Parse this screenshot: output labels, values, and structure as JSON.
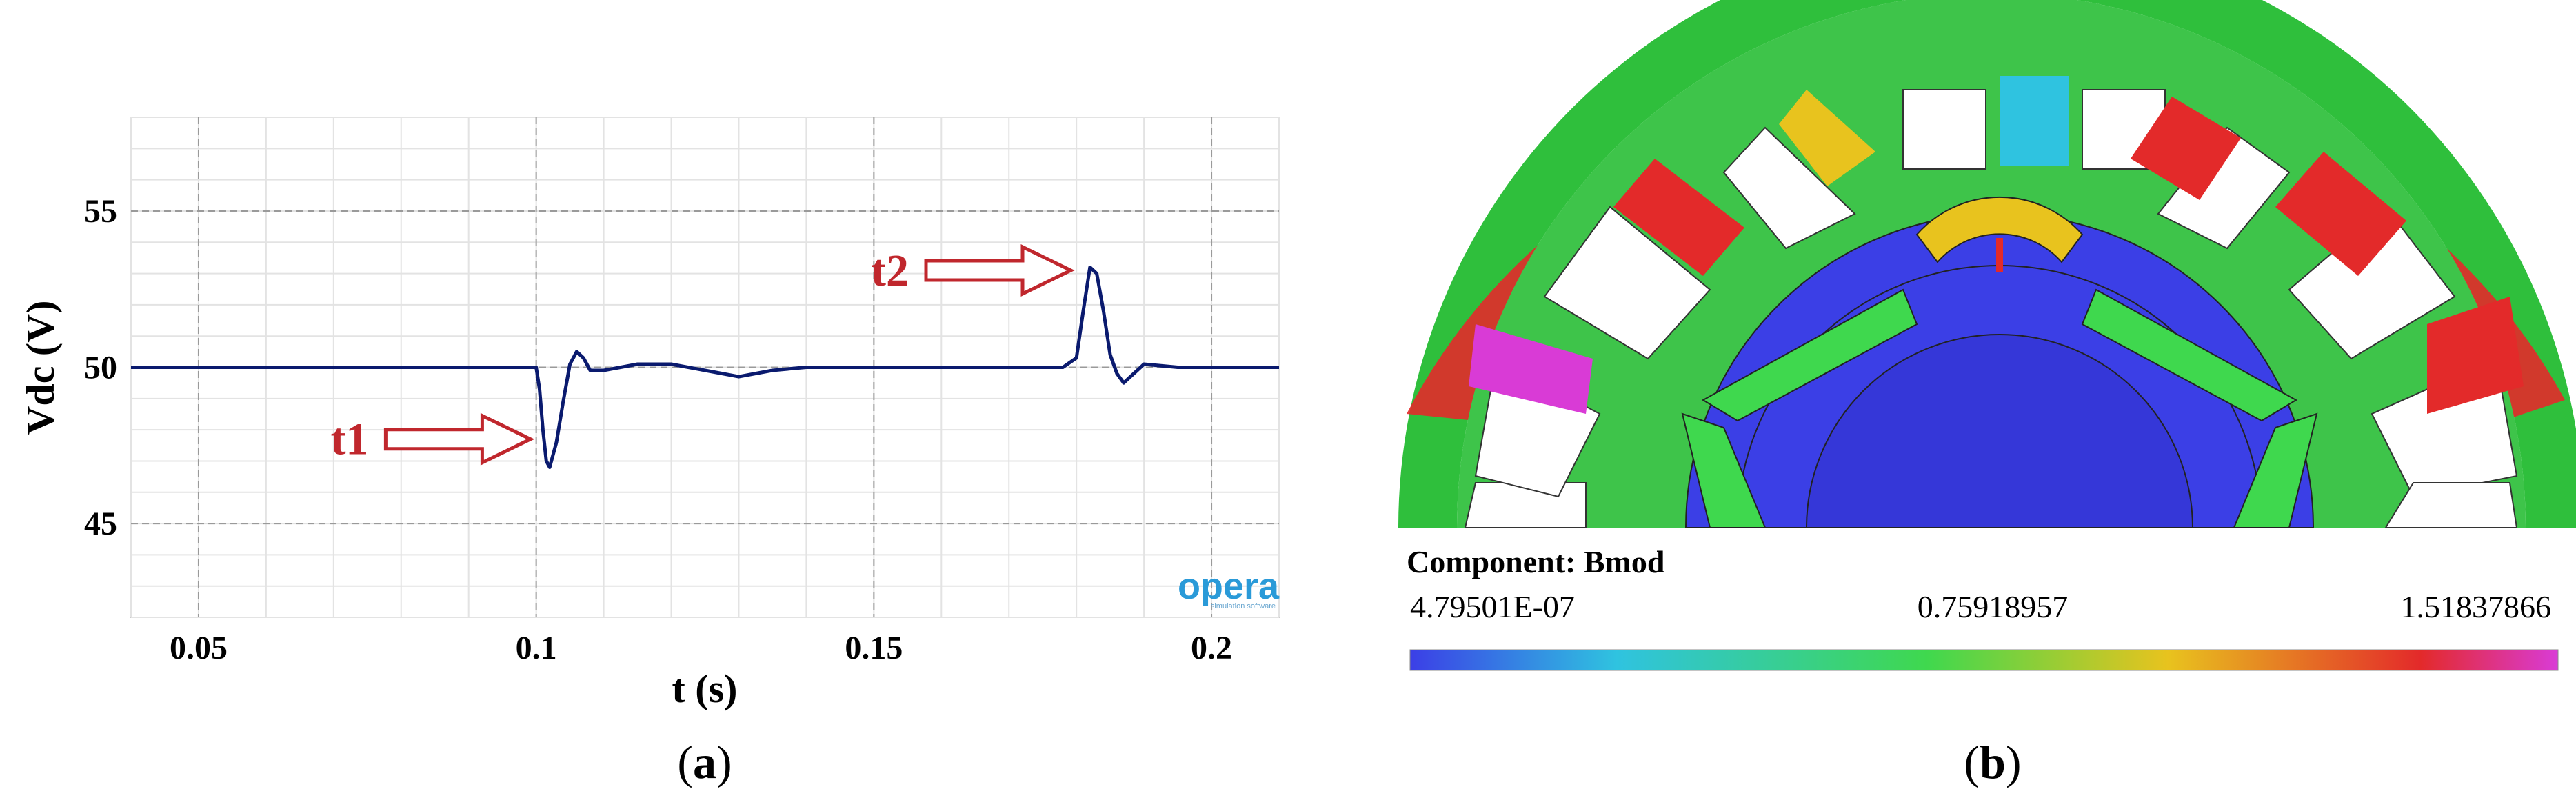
{
  "panels": [
    {
      "id": "a",
      "caption_prefix": "(",
      "caption_letter": "a",
      "caption_suffix": ")"
    },
    {
      "id": "b",
      "caption_prefix": "(",
      "caption_letter": "b",
      "caption_suffix": ")"
    }
  ],
  "chart_data": [
    {
      "type": "line",
      "panel": "a",
      "title": "",
      "xlabel": "t (s)",
      "ylabel": "Vdc (V)",
      "xlim": [
        0.04,
        0.21
      ],
      "ylim": [
        42,
        58
      ],
      "xticks": [
        0.05,
        0.1,
        0.15,
        0.2
      ],
      "xtick_labels": [
        "0.05",
        "0.1",
        "0.15",
        "0.2"
      ],
      "yticks": [
        45,
        50,
        55
      ],
      "ytick_labels": [
        "45",
        "50",
        "55"
      ],
      "grid": true,
      "line_color": "#0a1a6e",
      "series": [
        {
          "x": [
            0.04,
            0.05,
            0.06,
            0.07,
            0.08,
            0.09,
            0.095,
            0.1,
            0.1005,
            0.101,
            0.1015,
            0.102,
            0.103,
            0.104,
            0.105,
            0.106,
            0.107,
            0.108,
            0.11,
            0.115,
            0.12,
            0.125,
            0.13,
            0.135,
            0.14,
            0.15,
            0.16,
            0.17,
            0.178,
            0.18,
            0.181,
            0.182,
            0.183,
            0.184,
            0.185,
            0.186,
            0.187,
            0.188,
            0.19,
            0.195,
            0.2,
            0.21
          ],
          "y": [
            50.0,
            50.0,
            50.0,
            50.0,
            50.0,
            50.0,
            50.0,
            50.0,
            49.3,
            48.0,
            47.0,
            46.8,
            47.6,
            48.9,
            50.1,
            50.5,
            50.3,
            49.9,
            49.9,
            50.1,
            50.1,
            49.9,
            49.7,
            49.9,
            50.0,
            50.0,
            50.0,
            50.0,
            50.0,
            50.3,
            51.8,
            53.2,
            53.0,
            51.8,
            50.4,
            49.8,
            49.5,
            49.7,
            50.1,
            50.0,
            50.0,
            50.0
          ]
        }
      ],
      "annotations": [
        {
          "text": "t1",
          "color": "#c0272d",
          "points_to_x": 0.101,
          "points_to_y": 47.7
        },
        {
          "text": "t2",
          "color": "#c0272d",
          "points_to_x": 0.181,
          "points_to_y": 53.1
        }
      ],
      "watermark": {
        "brand": "opera",
        "tagline": "simulation software"
      }
    },
    {
      "type": "heatmap",
      "panel": "b",
      "title": "",
      "colorbar": {
        "label_prefix": "Component: ",
        "label_name": "Bmod",
        "min": "4.79501E-07",
        "mid": "0.75918957",
        "max": "1.51837866",
        "colors": [
          "#3b3fe6",
          "#2fc3e0",
          "#3fd84e",
          "#e8c31e",
          "#e32a2a",
          "#d93bd6"
        ]
      }
    }
  ]
}
